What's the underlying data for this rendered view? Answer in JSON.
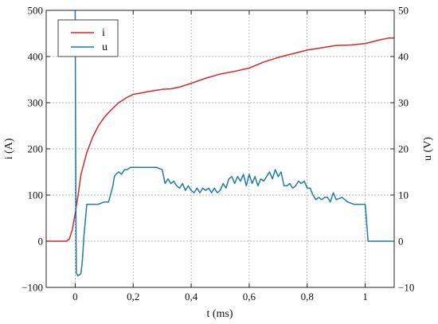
{
  "chart_data": {
    "type": "line",
    "xlabel": "t (ms)",
    "ylabel_left": "i (A)",
    "ylabel_right": "u (V)",
    "xlim": [
      -0.1,
      1.1
    ],
    "ylim_left": [
      -100,
      500
    ],
    "ylim_right": [
      -10,
      50
    ],
    "x_ticks": [
      {
        "value": 0,
        "label": "0"
      },
      {
        "value": 0.2,
        "label": "0,2"
      },
      {
        "value": 0.4,
        "label": "0,4"
      },
      {
        "value": 0.6,
        "label": "0,6"
      },
      {
        "value": 0.8,
        "label": "0,8"
      },
      {
        "value": 1.0,
        "label": "1"
      }
    ],
    "y_left_ticks": [
      {
        "value": -100,
        "label": "−100"
      },
      {
        "value": 0,
        "label": "0"
      },
      {
        "value": 100,
        "label": "100"
      },
      {
        "value": 200,
        "label": "200"
      },
      {
        "value": 300,
        "label": "300"
      },
      {
        "value": 400,
        "label": "400"
      },
      {
        "value": 500,
        "label": "500"
      }
    ],
    "y_right_ticks": [
      {
        "value": -10,
        "label": "−10"
      },
      {
        "value": 0,
        "label": "0"
      },
      {
        "value": 10,
        "label": "10"
      },
      {
        "value": 20,
        "label": "20"
      },
      {
        "value": 30,
        "label": "30"
      },
      {
        "value": 40,
        "label": "40"
      },
      {
        "value": 50,
        "label": "50"
      }
    ],
    "grid": true,
    "legend_position": "top-left",
    "series": [
      {
        "name": "i",
        "axis": "left",
        "color": "#d62728",
        "x": [
          -0.1,
          -0.03,
          -0.02,
          -0.01,
          0,
          0.01,
          0.02,
          0.04,
          0.06,
          0.08,
          0.1,
          0.12,
          0.15,
          0.18,
          0.2,
          0.22,
          0.25,
          0.28,
          0.3,
          0.33,
          0.36,
          0.4,
          0.45,
          0.5,
          0.55,
          0.6,
          0.65,
          0.7,
          0.75,
          0.8,
          0.85,
          0.9,
          0.95,
          1.0,
          1.05,
          1.08,
          1.1
        ],
        "y": [
          0,
          0,
          5,
          25,
          60,
          100,
          145,
          192,
          225,
          250,
          268,
          282,
          300,
          312,
          318,
          320,
          324,
          327,
          329,
          330,
          334,
          342,
          353,
          362,
          368,
          375,
          388,
          398,
          406,
          414,
          419,
          424,
          425,
          428,
          436,
          440,
          440
        ]
      },
      {
        "name": "u",
        "axis": "right",
        "color": "#1f7ba8",
        "x": [
          0,
          0.001,
          0.003,
          0.004,
          0.01,
          0.02,
          0.025,
          0.03,
          0.04,
          0.05,
          0.06,
          0.08,
          0.1,
          0.115,
          0.13,
          0.135,
          0.14,
          0.15,
          0.16,
          0.17,
          0.18,
          0.19,
          0.2,
          0.22,
          0.24,
          0.26,
          0.28,
          0.3,
          0.31,
          0.32,
          0.33,
          0.34,
          0.35,
          0.36,
          0.37,
          0.38,
          0.39,
          0.4,
          0.41,
          0.42,
          0.43,
          0.44,
          0.45,
          0.46,
          0.47,
          0.48,
          0.49,
          0.5,
          0.51,
          0.52,
          0.53,
          0.54,
          0.55,
          0.56,
          0.57,
          0.58,
          0.59,
          0.6,
          0.61,
          0.62,
          0.63,
          0.64,
          0.65,
          0.66,
          0.67,
          0.68,
          0.69,
          0.7,
          0.71,
          0.72,
          0.73,
          0.74,
          0.75,
          0.76,
          0.77,
          0.78,
          0.79,
          0.8,
          0.81,
          0.82,
          0.83,
          0.84,
          0.85,
          0.86,
          0.87,
          0.88,
          0.89,
          0.9,
          0.92,
          0.94,
          0.96,
          0.98,
          0.99,
          1.0,
          1.005,
          1.01,
          1.05,
          1.1
        ],
        "y": [
          50,
          30,
          0,
          -7,
          -7.5,
          -7,
          -4,
          1,
          8,
          8,
          8,
          8,
          8.5,
          8.5,
          12,
          14,
          14.5,
          15,
          14.5,
          15.5,
          15.5,
          16,
          16,
          16,
          16,
          16,
          16,
          15.5,
          12.5,
          13.5,
          12.5,
          13,
          12,
          11.5,
          12.5,
          11,
          12,
          11,
          10.5,
          11.5,
          10.5,
          11.5,
          11,
          11.5,
          10.5,
          11.5,
          10.5,
          11,
          12.5,
          11.5,
          13.5,
          14,
          12.5,
          14,
          13,
          14.5,
          12,
          14.5,
          12.5,
          14,
          12,
          13.5,
          13,
          14,
          15,
          13.5,
          15.5,
          14,
          15,
          12,
          12,
          12.5,
          11.5,
          12,
          13,
          12.5,
          13,
          11.5,
          11.5,
          10,
          9,
          9.5,
          9,
          9.5,
          9.5,
          8.5,
          10.5,
          9,
          9.5,
          8.5,
          8,
          8,
          8,
          8,
          4,
          0,
          0,
          0
        ]
      }
    ]
  }
}
